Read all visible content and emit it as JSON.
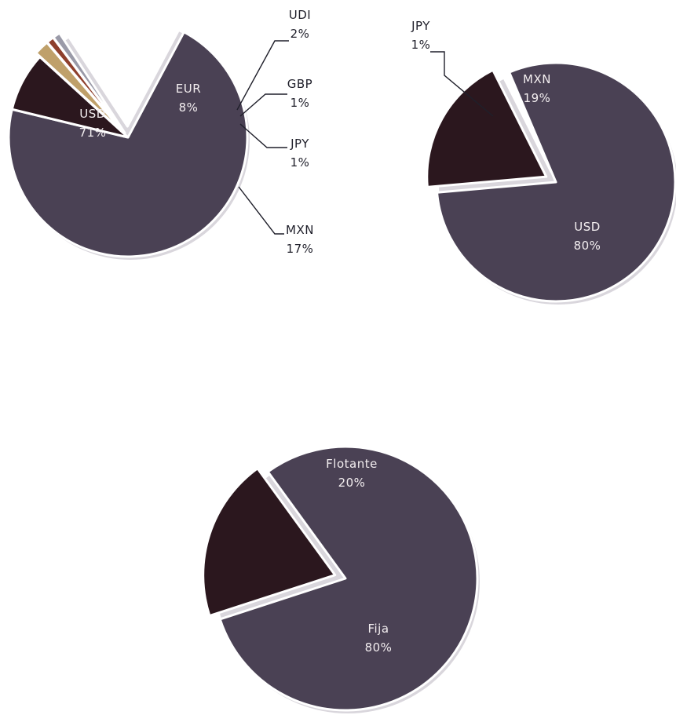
{
  "chart_data": [
    {
      "type": "pie",
      "title": "",
      "colors": {
        "USD": "#4a4154",
        "EUR": "#2b171e",
        "UDI": "#bfa06a",
        "GBP": "#8e3f2c",
        "JPY": "#9a9aa8",
        "MXN": "#ffffff"
      },
      "slices": [
        {
          "name": "USD",
          "value": 71,
          "label": "71%"
        },
        {
          "name": "EUR",
          "value": 8,
          "label": "8%"
        },
        {
          "name": "UDI",
          "value": 2,
          "label": "2%"
        },
        {
          "name": "GBP",
          "value": 1,
          "label": "1%"
        },
        {
          "name": "JPY",
          "value": 1,
          "label": "1%"
        },
        {
          "name": "MXN",
          "value": 17,
          "label": "17%"
        }
      ]
    },
    {
      "type": "pie",
      "title": "",
      "colors": {
        "USD": "#4a4154",
        "MXN": "#2b171e",
        "JPY": "#ffffff"
      },
      "slices": [
        {
          "name": "USD",
          "value": 80,
          "label": "80%"
        },
        {
          "name": "MXN",
          "value": 19,
          "label": "19%"
        },
        {
          "name": "JPY",
          "value": 1,
          "label": "1%"
        }
      ]
    },
    {
      "type": "pie",
      "title": "",
      "colors": {
        "Fija": "#4a4154",
        "Flotante": "#2b171e"
      },
      "slices": [
        {
          "name": "Fija",
          "value": 80,
          "label": "80%"
        },
        {
          "name": "Flotante",
          "value": 20,
          "label": "20%"
        }
      ]
    }
  ]
}
